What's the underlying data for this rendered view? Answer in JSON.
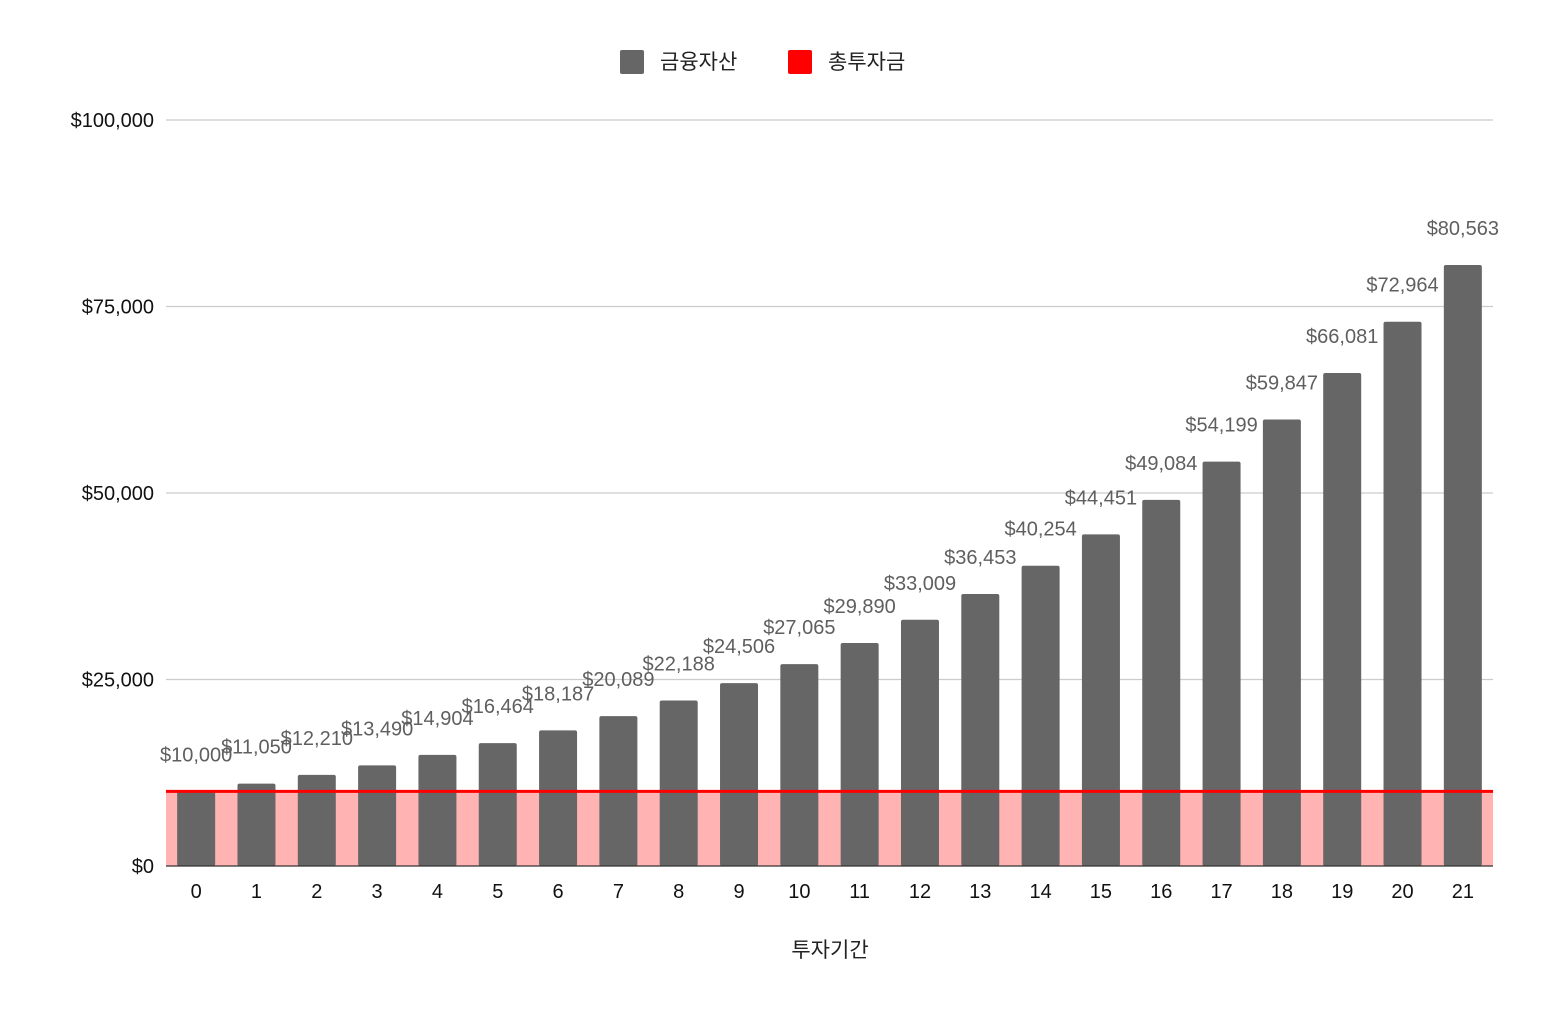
{
  "chart_data": {
    "type": "bar",
    "xlabel": "투자기간",
    "ylabel": "",
    "categories": [
      "0",
      "1",
      "2",
      "3",
      "4",
      "5",
      "6",
      "7",
      "8",
      "9",
      "10",
      "11",
      "12",
      "13",
      "14",
      "15",
      "16",
      "17",
      "18",
      "19",
      "20",
      "21"
    ],
    "series": [
      {
        "name": "금융자산",
        "type": "bar",
        "color": "#666666",
        "values": [
          10000,
          11050,
          12210,
          13490,
          14904,
          16464,
          18187,
          20089,
          22188,
          24506,
          27065,
          29890,
          33009,
          36453,
          40254,
          44451,
          49084,
          54199,
          59847,
          66081,
          72964,
          80563
        ],
        "labels": [
          "$10,000",
          "$11,050",
          "$12,210",
          "$13,490",
          "$14,904",
          "$16,464",
          "$18,187",
          "$20,089",
          "$22,188",
          "$24,506",
          "$27,065",
          "$29,890",
          "$33,009",
          "$36,453",
          "$40,254",
          "$44,451",
          "$49,084",
          "$54,199",
          "$59,847",
          "$66,081",
          "$72,964",
          "$80,563"
        ]
      },
      {
        "name": "총투자금",
        "type": "area",
        "color": "#ff0000",
        "fill_color": "#ffb3b3",
        "values": [
          10000,
          10000,
          10000,
          10000,
          10000,
          10000,
          10000,
          10000,
          10000,
          10000,
          10000,
          10000,
          10000,
          10000,
          10000,
          10000,
          10000,
          10000,
          10000,
          10000,
          10000,
          10000
        ]
      }
    ],
    "ylim": [
      0,
      100000
    ],
    "yticks": [
      0,
      25000,
      50000,
      75000,
      100000
    ],
    "ytick_labels": [
      "$0",
      "$25,000",
      "$50,000",
      "$75,000",
      "$100,000"
    ],
    "grid": true,
    "legend_position": "top-center"
  }
}
